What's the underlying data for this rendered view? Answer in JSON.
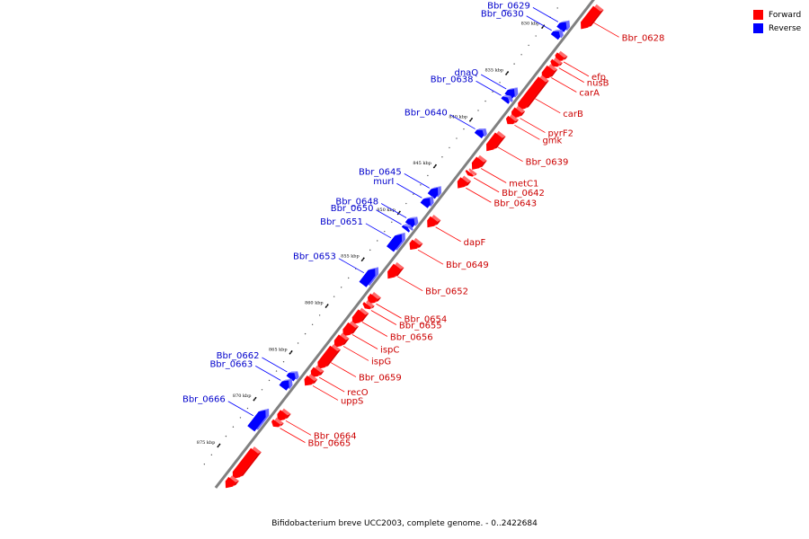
{
  "legend": {
    "forward": {
      "label": "Forward",
      "color": "#ff0000"
    },
    "reverse": {
      "label": "Reverse",
      "color": "#0000ff"
    }
  },
  "caption": "Bifidobacterium breve UCC2003, complete genome. - 0..2422684",
  "colors": {
    "backbone": "#808080",
    "forward": "#ff0000",
    "reverse": "#0000ff",
    "label_forward": "#cc0000",
    "label_reverse": "#0000cc"
  },
  "scale": {
    "ticks": [
      {
        "kbp": 830,
        "label": "830 kbp"
      },
      {
        "kbp": 835,
        "label": "835 kbp"
      },
      {
        "kbp": 840,
        "label": "840 kbp"
      },
      {
        "kbp": 845,
        "label": "845 kbp"
      },
      {
        "kbp": 850,
        "label": "850 kbp"
      },
      {
        "kbp": 855,
        "label": "855 kbp"
      },
      {
        "kbp": 860,
        "label": "860 kbp"
      },
      {
        "kbp": 865,
        "label": "865 kbp"
      },
      {
        "kbp": 870,
        "label": "870 kbp"
      },
      {
        "kbp": 875,
        "label": "875 kbp"
      }
    ]
  },
  "genes": {
    "forward": [
      {
        "name": "Bbr_0628",
        "start_kbp": 826.0,
        "end_kbp": 828.2
      },
      {
        "name": "efp",
        "start_kbp": 831.0,
        "end_kbp": 831.6
      },
      {
        "name": "nusB",
        "start_kbp": 831.7,
        "end_kbp": 832.2
      },
      {
        "name": "carA",
        "start_kbp": 832.4,
        "end_kbp": 833.6
      },
      {
        "name": "carB",
        "start_kbp": 833.6,
        "end_kbp": 836.9
      },
      {
        "name": "pyrF2",
        "start_kbp": 836.9,
        "end_kbp": 837.8
      },
      {
        "name": "gmk",
        "start_kbp": 837.8,
        "end_kbp": 838.4
      },
      {
        "name": "Bbr_0639",
        "start_kbp": 839.6,
        "end_kbp": 841.3
      },
      {
        "name": "metC1",
        "start_kbp": 842.2,
        "end_kbp": 843.3
      },
      {
        "name": "Bbr_0642",
        "start_kbp": 843.6,
        "end_kbp": 843.9
      },
      {
        "name": "Bbr_0643",
        "start_kbp": 844.4,
        "end_kbp": 845.3
      },
      {
        "name": "dapF",
        "start_kbp": 848.6,
        "end_kbp": 849.5
      },
      {
        "name": "Bbr_0649",
        "start_kbp": 851.1,
        "end_kbp": 851.9
      },
      {
        "name": "Bbr_0652",
        "start_kbp": 853.7,
        "end_kbp": 855.0
      },
      {
        "name": "Bbr_0654",
        "start_kbp": 856.9,
        "end_kbp": 857.7
      },
      {
        "name": "Bbr_0655",
        "start_kbp": 857.8,
        "end_kbp": 858.2
      },
      {
        "name": "Bbr_0656",
        "start_kbp": 858.6,
        "end_kbp": 859.9
      },
      {
        "name": "ispC",
        "start_kbp": 860.0,
        "end_kbp": 861.2
      },
      {
        "name": "ispG",
        "start_kbp": 861.3,
        "end_kbp": 862.4
      },
      {
        "name": "Bbr_0659",
        "start_kbp": 862.5,
        "end_kbp": 864.7
      },
      {
        "name": "recO",
        "start_kbp": 864.8,
        "end_kbp": 865.6
      },
      {
        "name": "uppS",
        "start_kbp": 865.7,
        "end_kbp": 866.5
      },
      {
        "name": "Bbr_0664",
        "start_kbp": 869.4,
        "end_kbp": 870.3
      },
      {
        "name": "Bbr_0665",
        "start_kbp": 870.4,
        "end_kbp": 870.9
      },
      {
        "name": "",
        "start_kbp": 873.5,
        "end_kbp": 876.5
      },
      {
        "name": "",
        "start_kbp": 876.6,
        "end_kbp": 877.5
      }
    ],
    "reverse": [
      {
        "name": "Bbr_0629",
        "start_kbp": 828.5,
        "end_kbp": 829.3
      },
      {
        "name": "Bbr_0630",
        "start_kbp": 829.5,
        "end_kbp": 830.1
      },
      {
        "name": "dnaQ",
        "start_kbp": 835.7,
        "end_kbp": 836.5
      },
      {
        "name": "Bbr_0638",
        "start_kbp": 836.6,
        "end_kbp": 837.0
      },
      {
        "name": "Bbr_0640",
        "start_kbp": 840.1,
        "end_kbp": 840.7
      },
      {
        "name": "Bbr_0645",
        "start_kbp": 846.3,
        "end_kbp": 847.2
      },
      {
        "name": "murI",
        "start_kbp": 847.4,
        "end_kbp": 848.2
      },
      {
        "name": "Bbr_0648",
        "start_kbp": 849.6,
        "end_kbp": 850.3
      },
      {
        "name": "Bbr_0650",
        "start_kbp": 850.5,
        "end_kbp": 850.8
      },
      {
        "name": "Bbr_0651",
        "start_kbp": 851.3,
        "end_kbp": 852.9
      },
      {
        "name": "Bbr_0653",
        "start_kbp": 855.0,
        "end_kbp": 856.7
      },
      {
        "name": "Bbr_0662",
        "start_kbp": 866.2,
        "end_kbp": 866.8
      },
      {
        "name": "Bbr_0663",
        "start_kbp": 867.0,
        "end_kbp": 867.8
      },
      {
        "name": "Bbr_0666",
        "start_kbp": 870.2,
        "end_kbp": 872.2
      }
    ]
  }
}
